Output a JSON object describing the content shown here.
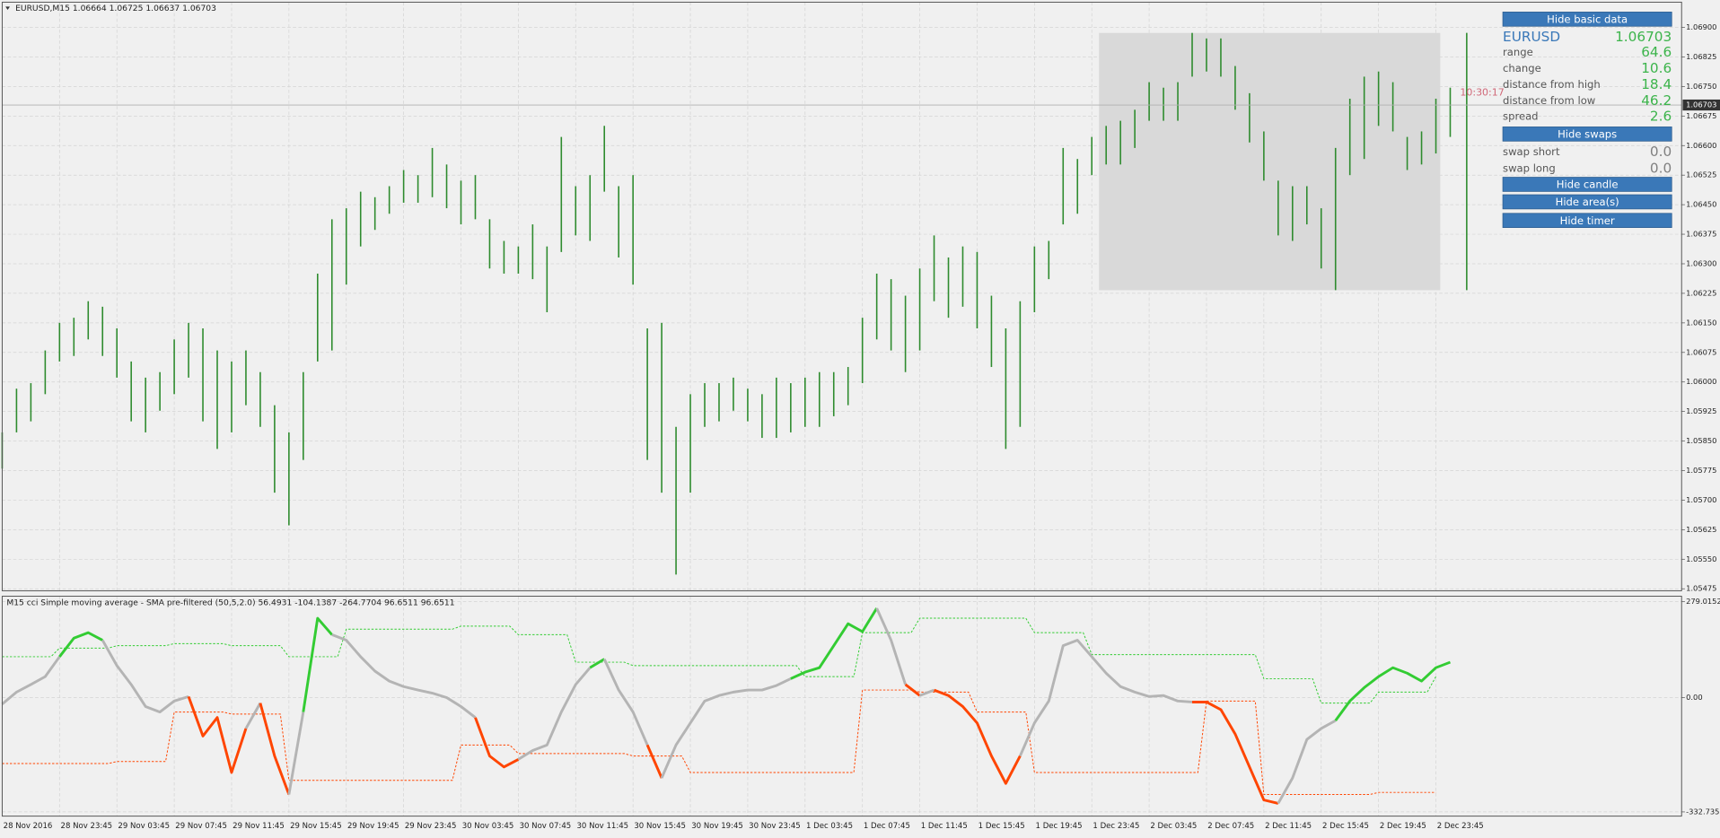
{
  "header": {
    "symbol_line": "EURUSD,M15  1.06664 1.06725 1.06637 1.06703"
  },
  "price_chart": {
    "ylim": [
      1.0547,
      1.06964
    ],
    "yticks": [
      {
        "value": 1.069,
        "label": "1.06900"
      },
      {
        "value": 1.06825,
        "label": "1.06825"
      },
      {
        "value": 1.0675,
        "label": "1.06750"
      },
      {
        "value": 1.06675,
        "label": "1.06675"
      },
      {
        "value": 1.066,
        "label": "1.06600"
      },
      {
        "value": 1.06525,
        "label": "1.06525"
      },
      {
        "value": 1.0645,
        "label": "1.06450"
      },
      {
        "value": 1.06375,
        "label": "1.06375"
      },
      {
        "value": 1.063,
        "label": "1.06300"
      },
      {
        "value": 1.06225,
        "label": "1.06225"
      },
      {
        "value": 1.0615,
        "label": "1.06150"
      },
      {
        "value": 1.06075,
        "label": "1.06075"
      },
      {
        "value": 1.06,
        "label": "1.06000"
      },
      {
        "value": 1.05925,
        "label": "1.05925"
      },
      {
        "value": 1.0585,
        "label": "1.05850"
      },
      {
        "value": 1.05775,
        "label": "1.05775"
      },
      {
        "value": 1.057,
        "label": "1.05700"
      },
      {
        "value": 1.05625,
        "label": "1.05625"
      },
      {
        "value": 1.0555,
        "label": "1.05550"
      },
      {
        "value": 1.05475,
        "label": "1.05475"
      }
    ],
    "bar_color": "#2e8b2e",
    "high": [
      1.05872,
      1.05983,
      1.05997,
      1.0608,
      1.0615,
      1.06163,
      1.06205,
      1.06191,
      1.06136,
      1.06052,
      1.06011,
      1.06025,
      1.06108,
      1.0615,
      1.06136,
      1.0608,
      1.06052,
      1.0608,
      1.06025,
      1.05941,
      1.05872,
      1.06025,
      1.06275,
      1.06413,
      1.06441,
      1.06483,
      1.06469,
      1.06497,
      1.06538,
      1.06525,
      1.06594,
      1.06552,
      1.06511,
      1.06525,
      1.06413,
      1.06358,
      1.06344,
      1.064,
      1.06344,
      1.06622,
      1.06497,
      1.06525,
      1.0665,
      1.06497,
      1.06525,
      1.06136,
      1.0615,
      1.05886,
      1.05969,
      1.05997,
      1.05997,
      1.06011,
      1.05983,
      1.05969,
      1.06011,
      1.05997,
      1.06011,
      1.06025,
      1.06025,
      1.06038,
      1.06163,
      1.06275,
      1.06261,
      1.06219,
      1.06288,
      1.06372,
      1.06316,
      1.06344,
      1.0633,
      1.06219,
      1.06136,
      1.06205,
      1.06344,
      1.06358,
      1.06594,
      1.06566,
      1.06622,
      1.0665,
      1.06663,
      1.06691,
      1.06761,
      1.06747,
      1.06761,
      1.06886,
      1.06872,
      1.06872,
      1.06802,
      1.06733,
      1.06636,
      1.06511,
      1.06497,
      1.06497,
      1.06441,
      1.06594,
      1.06719,
      1.06775,
      1.06788,
      1.06761,
      1.06622,
      1.06636,
      1.06719,
      1.06747,
      1.06886
    ],
    "low": [
      1.0578,
      1.05872,
      1.059,
      1.05969,
      1.06052,
      1.06066,
      1.06108,
      1.06066,
      1.06011,
      1.059,
      1.05872,
      1.05927,
      1.05969,
      1.06011,
      1.059,
      1.0583,
      1.05872,
      1.05941,
      1.05886,
      1.05719,
      1.05636,
      1.05802,
      1.06052,
      1.0608,
      1.06247,
      1.06344,
      1.06386,
      1.06427,
      1.06455,
      1.06455,
      1.06469,
      1.06441,
      1.064,
      1.06413,
      1.06288,
      1.06275,
      1.06275,
      1.06261,
      1.06177,
      1.0633,
      1.06372,
      1.06358,
      1.06483,
      1.06316,
      1.06247,
      1.05802,
      1.05719,
      1.05511,
      1.05719,
      1.05886,
      1.059,
      1.05927,
      1.059,
      1.05858,
      1.05858,
      1.05872,
      1.05886,
      1.05886,
      1.05913,
      1.05941,
      1.05997,
      1.06108,
      1.0608,
      1.06025,
      1.0608,
      1.06205,
      1.06163,
      1.06191,
      1.06136,
      1.06038,
      1.0583,
      1.05886,
      1.06177,
      1.06261,
      1.064,
      1.06427,
      1.06525,
      1.06552,
      1.06552,
      1.06594,
      1.06663,
      1.06663,
      1.06663,
      1.06775,
      1.06788,
      1.06775,
      1.06691,
      1.06608,
      1.06511,
      1.06372,
      1.06358,
      1.064,
      1.06288,
      1.06233,
      1.06525,
      1.06566,
      1.0665,
      1.06636,
      1.06538,
      1.06552,
      1.0658,
      1.06622,
      1.06233
    ],
    "current_price": 1.06703,
    "timer": "10:30:17",
    "area": {
      "high": 1.06886,
      "low": 1.06233
    }
  },
  "indicator": {
    "title": "M15 cci Simple moving average - SMA pre-filtered (50,5,2.0) 56.4931 -104.1387 -264.7704 96.6511 96.6511",
    "ylim": [
      -345,
      295
    ],
    "yticks": [
      279.0152,
      {
        "value": 0,
        "label": "0.00"
      },
      -332.7352
    ],
    "colors": {
      "up": "#33cc33",
      "down": "#ff4500",
      "neutral": "#b4b4b4"
    },
    "cci": [
      -19,
      16,
      38,
      61,
      119,
      173,
      189,
      167,
      93,
      38,
      -26,
      -42,
      -10,
      3,
      -112,
      -58,
      -218,
      -90,
      -16,
      -170,
      -282,
      -42,
      231,
      183,
      167,
      119,
      77,
      48,
      32,
      22,
      13,
      0,
      -26,
      -58,
      -170,
      -202,
      -180,
      -154,
      -138,
      -42,
      38,
      87,
      112,
      22,
      -42,
      -138,
      -234,
      -138,
      -74,
      -10,
      6,
      16,
      22,
      22,
      35,
      55,
      74,
      87,
      151,
      215,
      192,
      260,
      167,
      38,
      6,
      22,
      6,
      -26,
      -74,
      -170,
      -250,
      -170,
      -74,
      -10,
      151,
      167,
      119,
      71,
      32,
      16,
      3,
      6,
      -10,
      -13,
      -13,
      -35,
      -106,
      -202,
      -298,
      -308,
      -234,
      -122,
      -90,
      -67,
      -10,
      29,
      61,
      87,
      71,
      48,
      87,
      103,
      null
    ],
    "upper": [
      119,
      144,
      151,
      157,
      151,
      119,
      199,
      199,
      208,
      183,
      103,
      93,
      93,
      93,
      61,
      189,
      231,
      231,
      189,
      125,
      125,
      125,
      55,
      -16,
      16,
      61
    ],
    "lower": [
      -192,
      -192,
      -186,
      -42,
      -48,
      -241,
      -241,
      -241,
      -138,
      -163,
      -163,
      -170,
      -218,
      -218,
      -218,
      22,
      16,
      -42,
      -218,
      -218,
      -218,
      -10,
      -282,
      -282,
      -276,
      -276
    ]
  },
  "time_axis": {
    "labels": [
      "28 Nov 2016",
      "28 Nov 23:45",
      "29 Nov 03:45",
      "29 Nov 07:45",
      "29 Nov 11:45",
      "29 Nov 15:45",
      "29 Nov 19:45",
      "29 Nov 23:45",
      "30 Nov 03:45",
      "30 Nov 07:45",
      "30 Nov 11:45",
      "30 Nov 15:45",
      "30 Nov 19:45",
      "30 Nov 23:45",
      "1 Dec 03:45",
      "1 Dec 07:45",
      "1 Dec 11:45",
      "1 Dec 15:45",
      "1 Dec 19:45",
      "1 Dec 23:45",
      "2 Dec 03:45",
      "2 Dec 07:45",
      "2 Dec 11:45",
      "2 Dec 15:45",
      "2 Dec 19:45",
      "2 Dec 23:45"
    ]
  },
  "panel": {
    "buttons": [
      "Hide basic data",
      "Hide swaps",
      "Hide candle",
      "Hide area(s)",
      "Hide timer"
    ],
    "symbol": "EURUSD",
    "bid": "1.06703",
    "rows": [
      {
        "label": "range",
        "value": "64.6"
      },
      {
        "label": "change",
        "value": "10.6"
      },
      {
        "label": "distance from high",
        "value": "18.4"
      },
      {
        "label": "distance from low",
        "value": "46.2"
      },
      {
        "label": "spread",
        "value": "2.6"
      }
    ],
    "swaps": [
      {
        "label": "swap short",
        "value": "0.0"
      },
      {
        "label": "swap long",
        "value": "0.0"
      }
    ]
  }
}
